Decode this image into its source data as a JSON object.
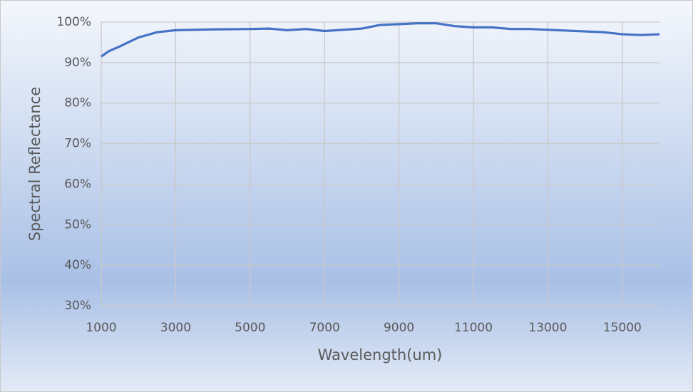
{
  "chart_data": {
    "type": "line",
    "x_label": "Wavelength(um)",
    "y_label": "Spectral Reflectance",
    "x": [
      1000,
      1200,
      1500,
      2000,
      2500,
      3000,
      3500,
      4000,
      5000,
      5500,
      6000,
      6500,
      7000,
      7500,
      8000,
      8500,
      9000,
      9500,
      10000,
      10500,
      11000,
      11500,
      12000,
      12500,
      13000,
      13500,
      14000,
      14500,
      15000,
      15500,
      16000
    ],
    "values": [
      91.5,
      92.8,
      94,
      96.2,
      97.5,
      98,
      98.1,
      98.2,
      98.3,
      98.4,
      98.0,
      98.3,
      97.8,
      98.1,
      98.4,
      99.3,
      99.5,
      99.7,
      99.7,
      99.0,
      98.7,
      98.7,
      98.3,
      98.3,
      98.1,
      97.9,
      97.7,
      97.5,
      97.0,
      96.8,
      97.0
    ],
    "color": "#4472c4",
    "xlim": [
      1000,
      16000
    ],
    "xticks": [
      1000,
      3000,
      5000,
      7000,
      9000,
      11000,
      13000,
      15000
    ],
    "ylim": [
      30,
      100
    ],
    "yticks": [
      {
        "value": 30,
        "label": "30%"
      },
      {
        "value": 40,
        "label": "40%"
      },
      {
        "value": 50,
        "label": "50%"
      },
      {
        "value": 60,
        "label": "60%"
      },
      {
        "value": 70,
        "label": "70%"
      },
      {
        "value": 80,
        "label": "80%"
      },
      {
        "value": 90,
        "label": "90%"
      },
      {
        "value": 100,
        "label": "100%"
      }
    ],
    "grid": true
  }
}
